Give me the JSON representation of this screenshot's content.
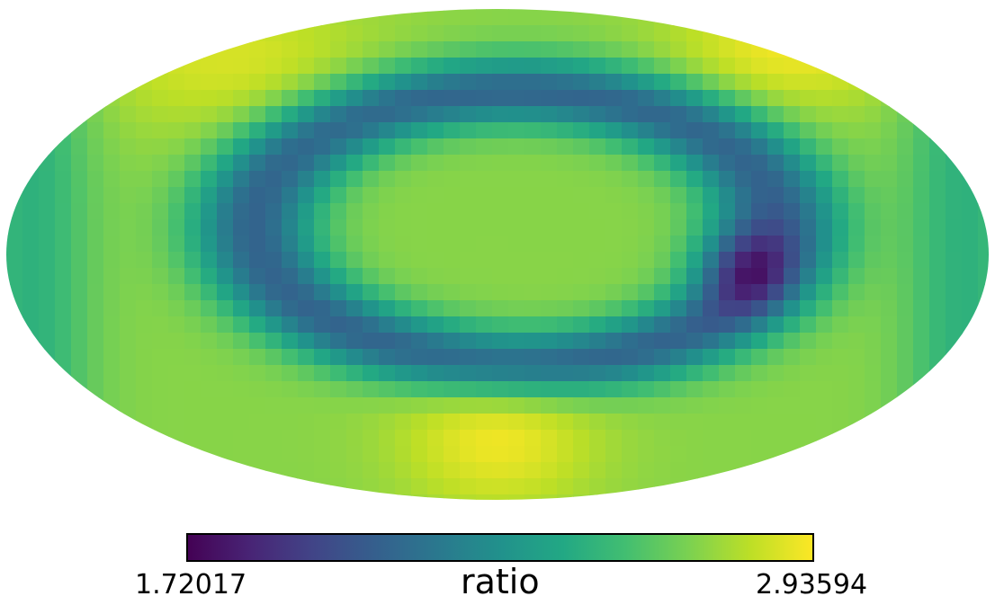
{
  "chart_data": {
    "type": "heatmap",
    "projection": "mollweide",
    "title": "",
    "colormap": "viridis",
    "colorbar": {
      "label": "ratio",
      "min_label": "1.72017",
      "max_label": "2.93594",
      "min": 1.72017,
      "max": 2.93594,
      "orientation": "horizontal",
      "placement": "bottom"
    },
    "grid": false,
    "pattern": {
      "features": [
        {
          "kind": "band",
          "description": "dark low-ratio band curving through the map",
          "value": 2.12
        },
        {
          "kind": "minimum",
          "value": 1.72017
        },
        {
          "kind": "maximum",
          "value": 2.93594
        }
      ]
    }
  }
}
